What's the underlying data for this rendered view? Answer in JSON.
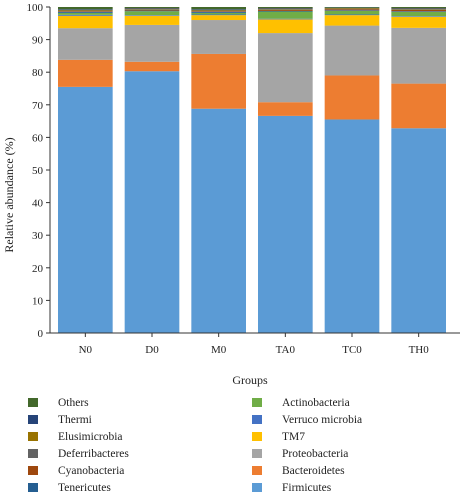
{
  "chart_data": {
    "type": "bar",
    "stacked": true,
    "title": "",
    "xlabel": "Groups",
    "ylabel": "Relative abundance (%)",
    "ylim": [
      0,
      100
    ],
    "yticks": [
      0,
      10,
      20,
      30,
      40,
      50,
      60,
      70,
      80,
      90,
      100
    ],
    "grid": false,
    "legend_position": "bottom",
    "categories": [
      "N0",
      "D0",
      "M0",
      "TA0",
      "TC0",
      "TH0"
    ],
    "series": [
      {
        "name": "Firmicutes",
        "color": "#5b9bd5",
        "values": [
          75.5,
          80.3,
          68.8,
          66.6,
          65.5,
          62.8
        ]
      },
      {
        "name": "Bacteroidetes",
        "color": "#ed7d31",
        "values": [
          8.3,
          2.9,
          16.8,
          4.2,
          13.5,
          13.7
        ]
      },
      {
        "name": "Proteobacteria",
        "color": "#a5a5a5",
        "values": [
          9.7,
          11.3,
          10.4,
          21.2,
          15.3,
          17.1
        ]
      },
      {
        "name": "TM7",
        "color": "#ffc000",
        "values": [
          3.8,
          2.8,
          1.5,
          4.2,
          3.2,
          3.4
        ]
      },
      {
        "name": "Verruco microbia",
        "color": "#4472c4",
        "values": [
          0.3,
          0.2,
          0.2,
          0.2,
          0.2,
          0.2
        ]
      },
      {
        "name": "Actinobacteria",
        "color": "#70ad47",
        "values": [
          0.6,
          1.2,
          0.5,
          2.2,
          1.1,
          1.3
        ]
      },
      {
        "name": "Tenericutes",
        "color": "#255e91",
        "values": [
          0.3,
          0.2,
          0.3,
          0.2,
          0.2,
          0.2
        ]
      },
      {
        "name": "Cyanobacteria",
        "color": "#9e480e",
        "values": [
          0.2,
          0.2,
          0.2,
          0.3,
          0.3,
          0.4
        ]
      },
      {
        "name": "Deferribacteres",
        "color": "#636363",
        "values": [
          0.2,
          0.2,
          0.2,
          0.2,
          0.2,
          0.2
        ]
      },
      {
        "name": "Elusimicrobia",
        "color": "#997300",
        "values": [
          0.2,
          0.2,
          0.2,
          0.2,
          0.2,
          0.2
        ]
      },
      {
        "name": "Thermi",
        "color": "#264478",
        "values": [
          0.2,
          0.2,
          0.2,
          0.2,
          0.1,
          0.2
        ]
      },
      {
        "name": "Others",
        "color": "#43682b",
        "values": [
          0.7,
          0.3,
          0.7,
          0.3,
          0.2,
          0.3
        ]
      }
    ],
    "legend_order": [
      "Others",
      "Actinobacteria",
      "Thermi",
      "Verruco microbia",
      "Elusimicrobia",
      "TM7",
      "Deferribacteres",
      "Proteobacteria",
      "Cyanobacteria",
      "Bacteroidetes",
      "Tenericutes",
      "Firmicutes"
    ]
  }
}
